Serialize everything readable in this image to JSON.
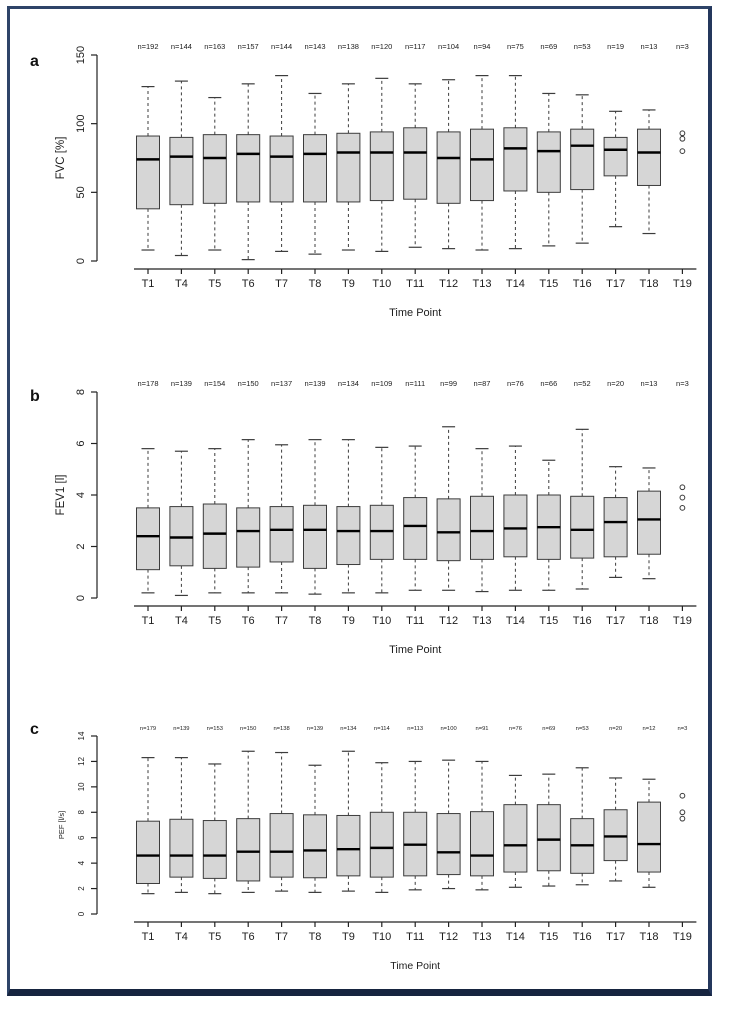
{
  "page": {
    "frame_border_color": "#2e4468",
    "box_fill_color": "#d6d6d6",
    "box_stroke_color": "#3c3c3c"
  },
  "chart_data": [
    {
      "type": "boxplot",
      "panel_label": "a",
      "ylabel": "FVC [%]",
      "xlabel": "Time Point",
      "ylim": [
        0,
        150
      ],
      "yticks": [
        0,
        50,
        100,
        150
      ],
      "grid": false,
      "categories": [
        "T1",
        "T4",
        "T5",
        "T6",
        "T7",
        "T8",
        "T9",
        "T10",
        "T11",
        "T12",
        "T13",
        "T14",
        "T15",
        "T16",
        "T17",
        "T18",
        "T19"
      ],
      "n_labels": [
        "n=192",
        "n=144",
        "n=163",
        "n=157",
        "n=144",
        "n=143",
        "n=138",
        "n=120",
        "n=117",
        "n=104",
        "n=94",
        "n=75",
        "n=69",
        "n=53",
        "n=19",
        "n=13",
        "n=3"
      ],
      "boxes": [
        {
          "whislo": 8,
          "q1": 38,
          "med": 74,
          "q3": 91,
          "whishi": 127
        },
        {
          "whislo": 4,
          "q1": 41,
          "med": 76,
          "q3": 90,
          "whishi": 131
        },
        {
          "whislo": 8,
          "q1": 42,
          "med": 75,
          "q3": 92,
          "whishi": 119
        },
        {
          "whislo": 1,
          "q1": 43,
          "med": 78,
          "q3": 92,
          "whishi": 129
        },
        {
          "whislo": 7,
          "q1": 43,
          "med": 76,
          "q3": 91,
          "whishi": 135
        },
        {
          "whislo": 5,
          "q1": 43,
          "med": 78,
          "q3": 92,
          "whishi": 122
        },
        {
          "whislo": 8,
          "q1": 43,
          "med": 79,
          "q3": 93,
          "whishi": 129
        },
        {
          "whislo": 7,
          "q1": 44,
          "med": 79,
          "q3": 94,
          "whishi": 133
        },
        {
          "whislo": 10,
          "q1": 45,
          "med": 79,
          "q3": 97,
          "whishi": 129
        },
        {
          "whislo": 9,
          "q1": 42,
          "med": 75,
          "q3": 94,
          "whishi": 132
        },
        {
          "whislo": 8,
          "q1": 44,
          "med": 74,
          "q3": 96,
          "whishi": 135
        },
        {
          "whislo": 9,
          "q1": 51,
          "med": 82,
          "q3": 97,
          "whishi": 135
        },
        {
          "whislo": 11,
          "q1": 50,
          "med": 80,
          "q3": 94,
          "whishi": 122
        },
        {
          "whislo": 13,
          "q1": 52,
          "med": 84,
          "q3": 96,
          "whishi": 121
        },
        {
          "whislo": 25,
          "q1": 62,
          "med": 81,
          "q3": 90,
          "whishi": 109
        },
        {
          "whislo": 20,
          "q1": 55,
          "med": 79,
          "q3": 96,
          "whishi": 110
        },
        null
      ],
      "outliers": [
        {
          "category": "T19",
          "values": [
            93,
            89,
            80
          ]
        }
      ]
    },
    {
      "type": "boxplot",
      "panel_label": "b",
      "ylabel": "FEV1 [l]",
      "xlabel": "Time Point",
      "ylim": [
        0,
        8
      ],
      "yticks": [
        0,
        2,
        4,
        6,
        8
      ],
      "grid": false,
      "categories": [
        "T1",
        "T4",
        "T5",
        "T6",
        "T7",
        "T8",
        "T9",
        "T10",
        "T11",
        "T12",
        "T13",
        "T14",
        "T15",
        "T16",
        "T17",
        "T18",
        "T19"
      ],
      "n_labels": [
        "n=178",
        "n=139",
        "n=154",
        "n=150",
        "n=137",
        "n=139",
        "n=134",
        "n=109",
        "n=111",
        "n=99",
        "n=87",
        "n=76",
        "n=66",
        "n=52",
        "n=20",
        "n=13",
        "n=3"
      ],
      "boxes": [
        {
          "whislo": 0.2,
          "q1": 1.1,
          "med": 2.4,
          "q3": 3.5,
          "whishi": 5.8
        },
        {
          "whislo": 0.1,
          "q1": 1.25,
          "med": 2.35,
          "q3": 3.55,
          "whishi": 5.7
        },
        {
          "whislo": 0.2,
          "q1": 1.15,
          "med": 2.5,
          "q3": 3.65,
          "whishi": 5.8
        },
        {
          "whislo": 0.2,
          "q1": 1.2,
          "med": 2.6,
          "q3": 3.5,
          "whishi": 6.15
        },
        {
          "whislo": 0.2,
          "q1": 1.4,
          "med": 2.65,
          "q3": 3.55,
          "whishi": 5.95
        },
        {
          "whislo": 0.15,
          "q1": 1.15,
          "med": 2.65,
          "q3": 3.6,
          "whishi": 6.15
        },
        {
          "whislo": 0.2,
          "q1": 1.3,
          "med": 2.6,
          "q3": 3.55,
          "whishi": 6.15
        },
        {
          "whislo": 0.2,
          "q1": 1.5,
          "med": 2.6,
          "q3": 3.6,
          "whishi": 5.85
        },
        {
          "whislo": 0.3,
          "q1": 1.5,
          "med": 2.8,
          "q3": 3.9,
          "whishi": 5.9
        },
        {
          "whislo": 0.3,
          "q1": 1.45,
          "med": 2.55,
          "q3": 3.85,
          "whishi": 6.65
        },
        {
          "whislo": 0.25,
          "q1": 1.5,
          "med": 2.6,
          "q3": 3.95,
          "whishi": 5.8
        },
        {
          "whislo": 0.3,
          "q1": 1.6,
          "med": 2.7,
          "q3": 4.0,
          "whishi": 5.9
        },
        {
          "whislo": 0.3,
          "q1": 1.5,
          "med": 2.75,
          "q3": 4.0,
          "whishi": 5.35
        },
        {
          "whislo": 0.35,
          "q1": 1.55,
          "med": 2.65,
          "q3": 3.95,
          "whishi": 6.55
        },
        {
          "whislo": 0.8,
          "q1": 1.6,
          "med": 2.95,
          "q3": 3.9,
          "whishi": 5.1
        },
        {
          "whislo": 0.75,
          "q1": 1.7,
          "med": 3.05,
          "q3": 4.15,
          "whishi": 5.05
        },
        null
      ],
      "outliers": [
        {
          "category": "T19",
          "values": [
            4.3,
            3.9,
            3.5
          ]
        }
      ]
    },
    {
      "type": "boxplot",
      "panel_label": "c",
      "ylabel": "PEF [l/s]",
      "xlabel": "Time Point",
      "ylim": [
        0,
        14
      ],
      "yticks": [
        0,
        2,
        4,
        6,
        8,
        10,
        12,
        14
      ],
      "grid": false,
      "categories": [
        "T1",
        "T4",
        "T5",
        "T6",
        "T7",
        "T8",
        "T9",
        "T10",
        "T11",
        "T12",
        "T13",
        "T14",
        "T15",
        "T16",
        "T17",
        "T18",
        "T19"
      ],
      "n_labels": [
        "n=179",
        "n=139",
        "n=153",
        "n=150",
        "n=138",
        "n=139",
        "n=134",
        "n=114",
        "n=113",
        "n=100",
        "n=91",
        "n=76",
        "n=69",
        "n=53",
        "n=20",
        "n=12",
        "n=3"
      ],
      "boxes": [
        {
          "whislo": 1.6,
          "q1": 2.4,
          "med": 4.6,
          "q3": 7.3,
          "whishi": 12.3
        },
        {
          "whislo": 1.7,
          "q1": 2.9,
          "med": 4.6,
          "q3": 7.45,
          "whishi": 12.3
        },
        {
          "whislo": 1.6,
          "q1": 2.8,
          "med": 4.6,
          "q3": 7.35,
          "whishi": 11.8
        },
        {
          "whislo": 1.7,
          "q1": 2.6,
          "med": 4.9,
          "q3": 7.5,
          "whishi": 12.8
        },
        {
          "whislo": 1.8,
          "q1": 2.9,
          "med": 4.9,
          "q3": 7.9,
          "whishi": 12.7
        },
        {
          "whislo": 1.7,
          "q1": 2.85,
          "med": 5.0,
          "q3": 7.8,
          "whishi": 11.7
        },
        {
          "whislo": 1.8,
          "q1": 3.0,
          "med": 5.1,
          "q3": 7.75,
          "whishi": 12.8
        },
        {
          "whislo": 1.7,
          "q1": 2.9,
          "med": 5.2,
          "q3": 8.0,
          "whishi": 11.9
        },
        {
          "whislo": 1.9,
          "q1": 3.0,
          "med": 5.45,
          "q3": 8.0,
          "whishi": 12.0
        },
        {
          "whislo": 2.0,
          "q1": 3.1,
          "med": 4.85,
          "q3": 7.9,
          "whishi": 12.1
        },
        {
          "whislo": 1.9,
          "q1": 3.0,
          "med": 4.6,
          "q3": 8.05,
          "whishi": 12.0
        },
        {
          "whislo": 2.1,
          "q1": 3.3,
          "med": 5.4,
          "q3": 8.6,
          "whishi": 10.9
        },
        {
          "whislo": 2.2,
          "q1": 3.4,
          "med": 5.85,
          "q3": 8.6,
          "whishi": 11.0
        },
        {
          "whislo": 2.3,
          "q1": 3.2,
          "med": 5.4,
          "q3": 7.5,
          "whishi": 11.5
        },
        {
          "whislo": 2.6,
          "q1": 4.2,
          "med": 6.1,
          "q3": 8.2,
          "whishi": 10.7
        },
        {
          "whislo": 2.1,
          "q1": 3.3,
          "med": 5.5,
          "q3": 8.8,
          "whishi": 10.6
        },
        null
      ],
      "outliers": [
        {
          "category": "T19",
          "values": [
            9.3,
            8.0,
            7.5
          ]
        }
      ]
    }
  ]
}
